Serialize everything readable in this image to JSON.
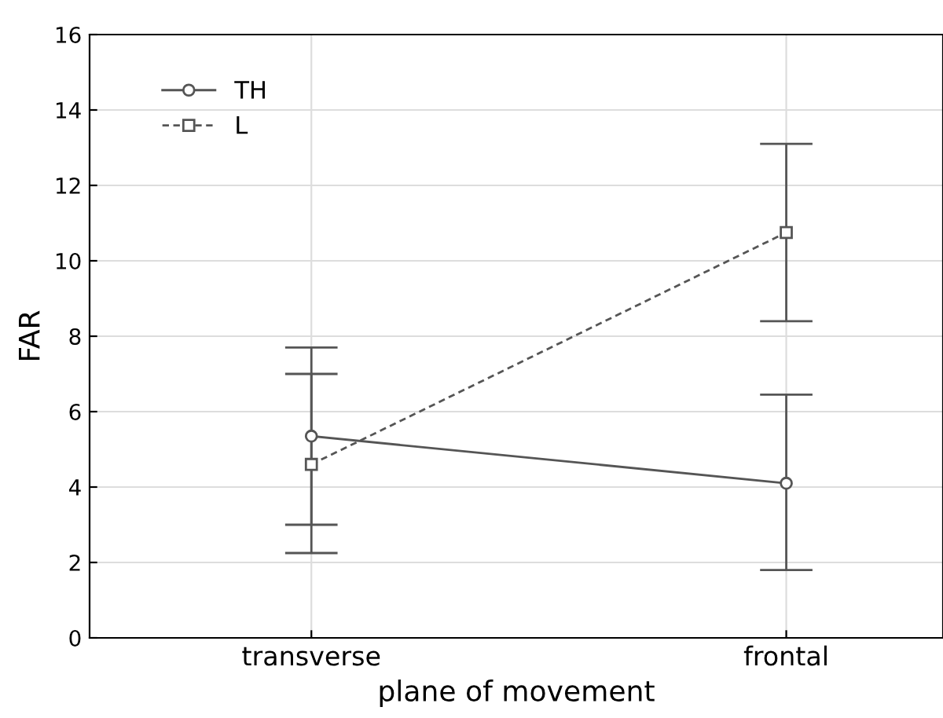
{
  "chart_data": {
    "type": "line",
    "xlabel": "plane of movement",
    "ylabel": "FAR",
    "categories": [
      "transverse",
      "frontal"
    ],
    "series": [
      {
        "name": "TH",
        "color": "#555555",
        "values": [
          5.35,
          4.1
        ],
        "errors": [
          [
            3.0,
            7.7
          ],
          [
            1.8,
            6.45
          ]
        ],
        "marker": "circle",
        "line_style": "solid"
      },
      {
        "name": "L",
        "color": "#555555",
        "values": [
          4.6,
          10.75
        ],
        "errors": [
          [
            2.25,
            7.0
          ],
          [
            8.4,
            13.1
          ]
        ],
        "marker": "square",
        "line_style": "dashed"
      }
    ],
    "ylim": [
      0,
      16
    ],
    "yticks": [
      0,
      2,
      4,
      6,
      8,
      10,
      12,
      14,
      16
    ],
    "grid": true,
    "legend": "top left"
  }
}
